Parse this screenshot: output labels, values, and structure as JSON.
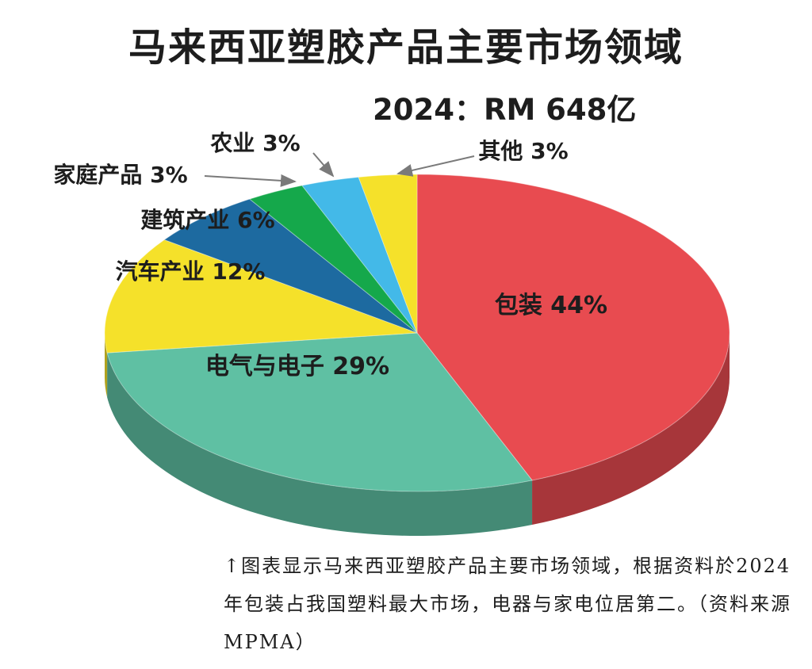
{
  "title": "马来西亚塑胶产品主要市场领域",
  "subtitle": "2024：RM 648亿",
  "chart_data": {
    "type": "pie",
    "title": "马来西亚塑胶产品主要市场领域",
    "subtitle": "2024：RM 648亿",
    "slices": [
      {
        "label": "包装",
        "value": 44,
        "display": "包装 44%",
        "color": "#e84b50"
      },
      {
        "label": "电气与电子",
        "value": 29,
        "display": "电气与电子 29%",
        "color": "#5fc0a3"
      },
      {
        "label": "汽车产业",
        "value": 12,
        "display": "汽车产业 12%",
        "color": "#f5e12a"
      },
      {
        "label": "建筑产业",
        "value": 6,
        "display": "建筑产业 6%",
        "color": "#1d6aa0"
      },
      {
        "label": "家庭产品",
        "value": 3,
        "display": "家庭产品 3%",
        "color": "#15a84b"
      },
      {
        "label": "农业",
        "value": 3,
        "display": "农业 3%",
        "color": "#43b9e8"
      },
      {
        "label": "其他",
        "value": 3,
        "display": "其他 3%",
        "color": "#f5e12a"
      }
    ],
    "unit": "%"
  },
  "caption": "↑图表显示马来西亚塑胶产品主要市场领域，根据资料於2024年包装占我国塑料最大市场，电器与家电位居第二。（资料来源MPMA）"
}
